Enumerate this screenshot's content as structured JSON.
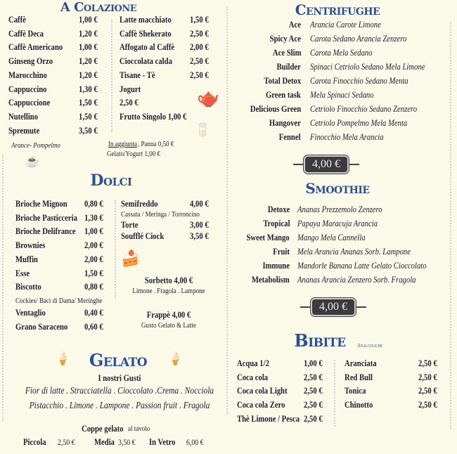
{
  "colazione": {
    "title": "A Colazione",
    "left": [
      [
        "Caffè",
        "1,00 €"
      ],
      [
        "Caffè Deca",
        "1,20 €"
      ],
      [
        "Caffè Americano",
        "1,00 €"
      ],
      [
        "Ginseng Orzo",
        "1,20 €"
      ],
      [
        "Marocchino",
        "1,20 €"
      ],
      [
        "Cappuccino",
        "1,30 €"
      ],
      [
        "Cappuccione",
        "1,50 €"
      ],
      [
        "Nutellino",
        "1,50 €"
      ],
      [
        "Spremute",
        "3,50 €"
      ]
    ],
    "left_note": "Arance- Pompelmo",
    "right": [
      [
        "Latte macchiato",
        "1,50 €"
      ],
      [
        "Caffè Shekerato",
        "2,50 €"
      ],
      [
        "Affogato al Caffè",
        "2,00 €"
      ],
      [
        "Cioccolata calda",
        "2,50 €"
      ],
      [
        "Tisane - Tè",
        "2,50 €"
      ],
      [
        "Jogurt",
        ""
      ],
      [
        "2,50 €",
        ""
      ],
      [
        "Frutto Singolo 1,00 €",
        ""
      ]
    ],
    "extra_label": "In aggiunta",
    "extra_1": ", Panna 0,50 €",
    "extra_2": "Gelato/Yogurt 1,00 €"
  },
  "centrifughe": {
    "title": "Centrifughe",
    "price": "4,00 €",
    "items": [
      [
        "Ace",
        "Arancia Carote Limone"
      ],
      [
        "Spicy Ace",
        "Carota Sedano Arancia Zenzero"
      ],
      [
        "Ace Slim",
        "Carota Mela Sedano"
      ],
      [
        "Builder",
        "Spinaci Cetriolo Sedano Mela Limone"
      ],
      [
        "Total Detox",
        "Carota Finocchio Sedano Menta"
      ],
      [
        "Green task",
        "Mela Spinaci Sedano"
      ],
      [
        "Delicious Green",
        "Cetriolo Finocchio Sedano Zenzero"
      ],
      [
        "Hangover",
        "Cetriolo Pompelmo Mela Menta"
      ],
      [
        "Fennel",
        "Finocchio Mela Arancia"
      ]
    ]
  },
  "dolci": {
    "title": "Dolci",
    "left": [
      [
        "Brioche Mignon",
        "0,80 €"
      ],
      [
        "Brioche Pasticceria",
        "1,30 €"
      ],
      [
        "Brioche Delifrance",
        "1,00 €"
      ],
      [
        "Brownies",
        "2,00 €"
      ],
      [
        "Muffin",
        "2,00 €"
      ],
      [
        "Esse",
        "1,50 €"
      ],
      [
        "Biscotto",
        "0,80 €"
      ]
    ],
    "biscotto_note": "Cockies/ Baci di Dama/ Meringhe",
    "left2": [
      [
        "Ventaglio",
        "0,40 €"
      ],
      [
        "Grano Saraceno",
        "0,60 €"
      ]
    ],
    "semifreddo": [
      "Semifreddo",
      "4,00 €"
    ],
    "semifreddo_note": "Cassata / Meringa / Torroncino",
    "right": [
      [
        "Torte",
        "3,00 €"
      ],
      [
        "Soufflé Ciock",
        "3,50 €"
      ]
    ],
    "sorbetto": "Sorbetto 4,00 €",
    "sorbetto_note": "Limone . Fragola . Lampone",
    "frappe": "Frappè 4,00 €",
    "frappe_note": "Gusto Gelato & Latte"
  },
  "smoothie": {
    "title": "Smoothie",
    "price": "4,00 €",
    "items": [
      [
        "Detoxe",
        "Ananas Prezzemolo Zenzero"
      ],
      [
        "Tropical",
        "Papaya Maracuja Arancia"
      ],
      [
        "Sweet Mango",
        "Mango Mela Cannella"
      ],
      [
        "Fruit",
        "Mela Arancia Ananas Sorb. Lampone"
      ],
      [
        "Immune",
        "Mandorle Banana Latte Gelato Cioccolato"
      ],
      [
        "Metabolism",
        "Ananas Arancia Zenzero Sorb. Fragola"
      ]
    ]
  },
  "gelato": {
    "title": "Gelato",
    "subtitle": "I nostri Gusti",
    "flavours_1": "Fior di latte . Stracciatella . Cioccolato .Crema . Nocciola",
    "flavours_2": "Pistacchio . Limone . Lampone . Passion fruit . Fragola",
    "coppe": "Coppe gelato",
    "coppe_note": "al tavolo",
    "sizes": [
      [
        "Piccola",
        "2,50 €"
      ],
      [
        "Media",
        "3,50 €"
      ],
      [
        "In Vetro",
        "6,00 €"
      ]
    ]
  },
  "bibite": {
    "title": "Bibite",
    "subtitle": "Analcoliche",
    "left": [
      [
        "Acqua 1/2",
        "1,00 €"
      ],
      [
        "Coca cola",
        "2,50 €"
      ],
      [
        "Coca cola Light",
        "2,50 €"
      ],
      [
        "Coca cola Zero",
        "2,50 €"
      ],
      [
        "Thè Limone / Pesca",
        "2,50 €"
      ]
    ],
    "right": [
      [
        "Aranciata",
        "2,50 €"
      ],
      [
        "Red Bull",
        "2,50 €"
      ],
      [
        "Tonica",
        "2,50 €"
      ],
      [
        "Chinotto",
        "2,50 €"
      ]
    ]
  },
  "icons": [
    "teapot-icon",
    "milk-carton-icon",
    "coffee-cup-icon",
    "cake-slice-icon",
    "ice-cream-icon"
  ],
  "colors": {
    "heading": "#2a4f97",
    "text": "#1d1d33",
    "background": "#fbfae8"
  }
}
